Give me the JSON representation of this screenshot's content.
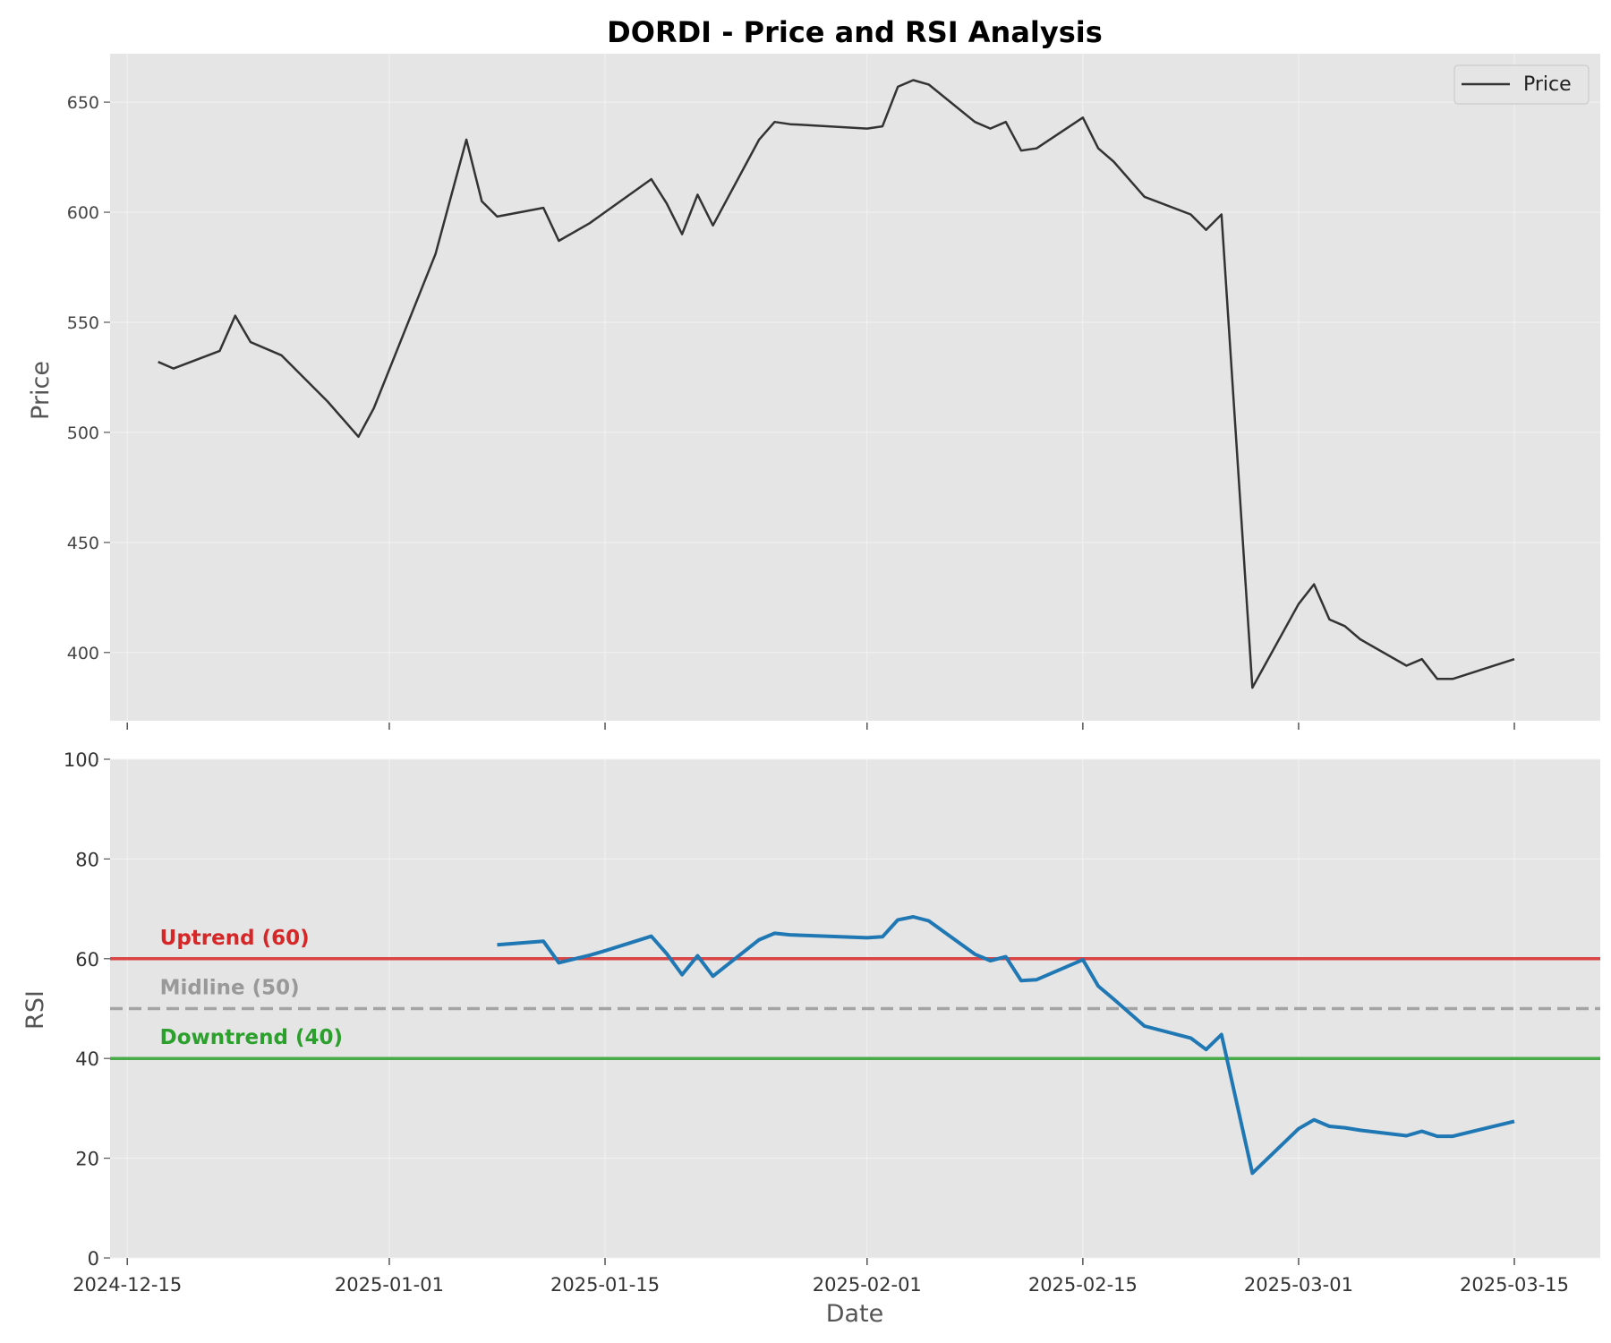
{
  "chart_data": [
    {
      "type": "line",
      "title": "DORDI - Price and RSI Analysis",
      "xlabel": "",
      "ylabel": "Price",
      "ylim": [
        369,
        672
      ],
      "xlim": [
        "2024-12-14",
        "2025-03-20"
      ],
      "grid": true,
      "legend": {
        "position": "top-right",
        "entries": [
          "Price"
        ]
      },
      "y_ticks": [
        400,
        450,
        500,
        550,
        600,
        650
      ],
      "series": [
        {
          "name": "Price",
          "color": "#333333",
          "points": [
            [
              "2024-12-17",
              532
            ],
            [
              "2024-12-18",
              529
            ],
            [
              "2024-12-21",
              537
            ],
            [
              "2024-12-22",
              553
            ],
            [
              "2024-12-23",
              541
            ],
            [
              "2024-12-25",
              535
            ],
            [
              "2024-12-28",
              514
            ],
            [
              "2024-12-30",
              498
            ],
            [
              "2024-12-31",
              511
            ],
            [
              "2025-01-04",
              581
            ],
            [
              "2025-01-06",
              633
            ],
            [
              "2025-01-07",
              605
            ],
            [
              "2025-01-08",
              598
            ],
            [
              "2025-01-11",
              602
            ],
            [
              "2025-01-12",
              587
            ],
            [
              "2025-01-14",
              595
            ],
            [
              "2025-01-15",
              600
            ],
            [
              "2025-01-18",
              615
            ],
            [
              "2025-01-19",
              604
            ],
            [
              "2025-01-20",
              590
            ],
            [
              "2025-01-21",
              608
            ],
            [
              "2025-01-22",
              594
            ],
            [
              "2025-01-25",
              633
            ],
            [
              "2025-01-26",
              641
            ],
            [
              "2025-01-27",
              640
            ],
            [
              "2025-02-01",
              638
            ],
            [
              "2025-02-02",
              639
            ],
            [
              "2025-02-03",
              657
            ],
            [
              "2025-02-04",
              660
            ],
            [
              "2025-02-05",
              658
            ],
            [
              "2025-02-08",
              641
            ],
            [
              "2025-02-09",
              638
            ],
            [
              "2025-02-10",
              641
            ],
            [
              "2025-02-11",
              628
            ],
            [
              "2025-02-12",
              629
            ],
            [
              "2025-02-15",
              643
            ],
            [
              "2025-02-16",
              629
            ],
            [
              "2025-02-17",
              623
            ],
            [
              "2025-02-19",
              607
            ],
            [
              "2025-02-22",
              599
            ],
            [
              "2025-02-23",
              592
            ],
            [
              "2025-02-24",
              599
            ],
            [
              "2025-02-26",
              384
            ],
            [
              "2025-03-01",
              422
            ],
            [
              "2025-03-02",
              431
            ],
            [
              "2025-03-03",
              415
            ],
            [
              "2025-03-04",
              412
            ],
            [
              "2025-03-05",
              406
            ],
            [
              "2025-03-08",
              394
            ],
            [
              "2025-03-09",
              397
            ],
            [
              "2025-03-10",
              388
            ],
            [
              "2025-03-11",
              388
            ],
            [
              "2025-03-15",
              397
            ]
          ]
        }
      ]
    },
    {
      "type": "line",
      "title": "",
      "xlabel": "Date",
      "ylabel": "RSI",
      "ylim": [
        0,
        100
      ],
      "xlim": [
        "2024-12-14",
        "2025-03-20"
      ],
      "grid": true,
      "y_ticks": [
        0,
        20,
        40,
        60,
        80,
        100
      ],
      "x_ticks": [
        "2024-12-15",
        "2025-01-01",
        "2025-01-15",
        "2025-02-01",
        "2025-02-15",
        "2025-03-01",
        "2025-03-15"
      ],
      "series": [
        {
          "name": "",
          "color": "#1f77b4",
          "points": [
            [
              "2025-01-08",
              62.8
            ],
            [
              "2025-01-11",
              63.5
            ],
            [
              "2025-01-12",
              59.2
            ],
            [
              "2025-01-14",
              60.7
            ],
            [
              "2025-01-15",
              61.6
            ],
            [
              "2025-01-18",
              64.5
            ],
            [
              "2025-01-19",
              61.0
            ],
            [
              "2025-01-20",
              56.8
            ],
            [
              "2025-01-21",
              60.6
            ],
            [
              "2025-01-22",
              56.5
            ],
            [
              "2025-01-25",
              63.8
            ],
            [
              "2025-01-26",
              65.1
            ],
            [
              "2025-01-27",
              64.8
            ],
            [
              "2025-02-01",
              64.2
            ],
            [
              "2025-02-02",
              64.4
            ],
            [
              "2025-02-03",
              67.8
            ],
            [
              "2025-02-04",
              68.4
            ],
            [
              "2025-02-05",
              67.6
            ],
            [
              "2025-02-08",
              60.9
            ],
            [
              "2025-02-09",
              59.6
            ],
            [
              "2025-02-10",
              60.4
            ],
            [
              "2025-02-11",
              55.6
            ],
            [
              "2025-02-12",
              55.8
            ],
            [
              "2025-02-15",
              59.8
            ],
            [
              "2025-02-16",
              54.5
            ],
            [
              "2025-02-17",
              51.9
            ],
            [
              "2025-02-19",
              46.5
            ],
            [
              "2025-02-22",
              44.1
            ],
            [
              "2025-02-23",
              41.8
            ],
            [
              "2025-02-24",
              44.8
            ],
            [
              "2025-02-26",
              17.0
            ],
            [
              "2025-03-01",
              25.9
            ],
            [
              "2025-03-02",
              27.7
            ],
            [
              "2025-03-03",
              26.4
            ],
            [
              "2025-03-04",
              26.1
            ],
            [
              "2025-03-05",
              25.6
            ],
            [
              "2025-03-08",
              24.5
            ],
            [
              "2025-03-09",
              25.4
            ],
            [
              "2025-03-10",
              24.4
            ],
            [
              "2025-03-11",
              24.4
            ],
            [
              "2025-03-15",
              27.4
            ]
          ]
        }
      ],
      "reference_lines": [
        {
          "value": 60,
          "label": "Uptrend (60)",
          "color": "#d62728",
          "style": "solid"
        },
        {
          "value": 50,
          "label": "Midline (50)",
          "color": "#999999",
          "style": "dashed"
        },
        {
          "value": 40,
          "label": "Downtrend (40)",
          "color": "#2ca02c",
          "style": "solid"
        }
      ]
    }
  ]
}
